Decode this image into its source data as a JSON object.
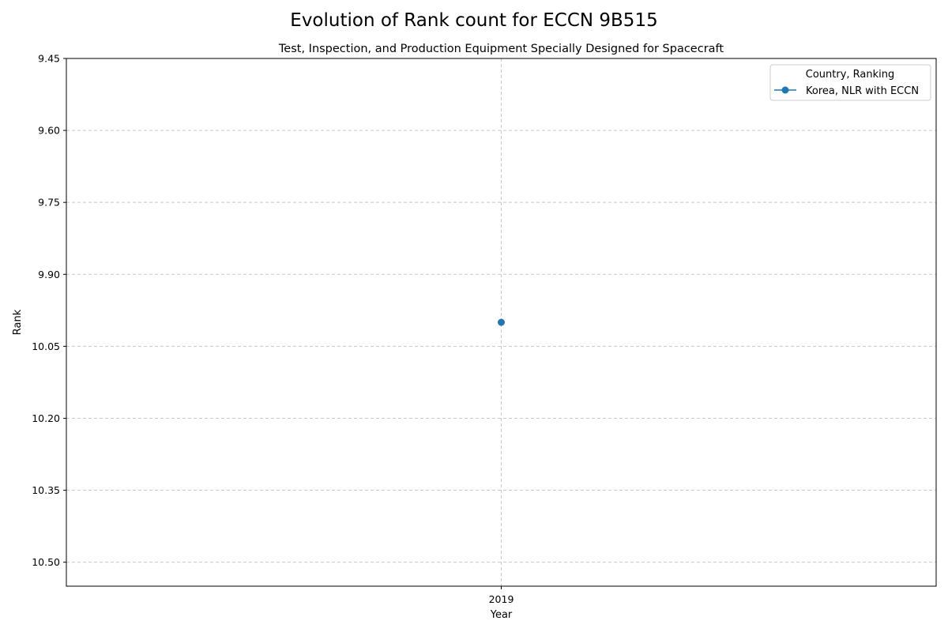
{
  "figure": {
    "title": "Evolution of Rank count for ECCN 9B515"
  },
  "chart_data": {
    "type": "line",
    "title": "Test, Inspection, and Production Equipment Specially Designed for Spacecraft",
    "xlabel": "Year",
    "ylabel": "Rank",
    "categories": [
      "2019"
    ],
    "y_inverted": true,
    "ylim": [
      9.45,
      10.55
    ],
    "yticks": [
      "9.45",
      "9.60",
      "9.75",
      "9.90",
      "10.05",
      "10.20",
      "10.35",
      "10.50"
    ],
    "grid": true,
    "legend": {
      "title": "Country, Ranking",
      "placement": "top-right"
    },
    "series": [
      {
        "name": "Korea, NLR with ECCN",
        "color": "#1f77b4",
        "marker": "circle",
        "values": [
          10.0
        ]
      }
    ]
  }
}
